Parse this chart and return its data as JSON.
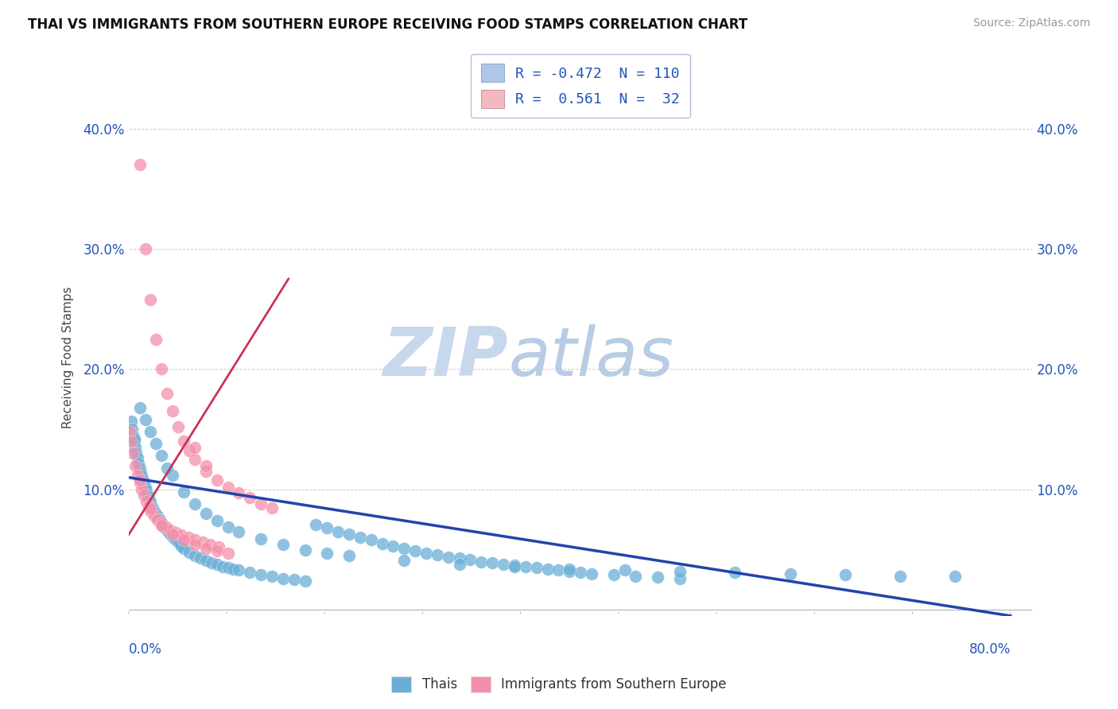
{
  "title": "THAI VS IMMIGRANTS FROM SOUTHERN EUROPE RECEIVING FOOD STAMPS CORRELATION CHART",
  "source": "Source: ZipAtlas.com",
  "ylabel": "Receiving Food Stamps",
  "ytick_values": [
    0.0,
    0.1,
    0.2,
    0.3,
    0.4
  ],
  "xlim": [
    0.0,
    0.82
  ],
  "ylim": [
    -0.005,
    0.425
  ],
  "legend_items": [
    {
      "label": "R = -0.472  N = 110",
      "color": "#aec6e8"
    },
    {
      "label": "R =  0.561  N =  32",
      "color": "#f4b8c1"
    }
  ],
  "legend_text_color": "#2255bb",
  "watermark_zip": "ZIP",
  "watermark_atlas": "atlas",
  "watermark_color_zip": "#c8d8ec",
  "watermark_color_atlas": "#b8cce4",
  "blue_color": "#6aaed6",
  "pink_color": "#f48faa",
  "blue_line_color": "#2244aa",
  "pink_line_color": "#cc3355",
  "blue_scatter_x": [
    0.002,
    0.003,
    0.004,
    0.005,
    0.006,
    0.007,
    0.008,
    0.009,
    0.01,
    0.011,
    0.012,
    0.013,
    0.014,
    0.015,
    0.016,
    0.017,
    0.018,
    0.019,
    0.02,
    0.022,
    0.024,
    0.026,
    0.028,
    0.03,
    0.032,
    0.034,
    0.036,
    0.038,
    0.04,
    0.042,
    0.044,
    0.046,
    0.048,
    0.05,
    0.055,
    0.06,
    0.065,
    0.07,
    0.075,
    0.08,
    0.085,
    0.09,
    0.095,
    0.1,
    0.11,
    0.12,
    0.13,
    0.14,
    0.15,
    0.16,
    0.17,
    0.18,
    0.19,
    0.2,
    0.21,
    0.22,
    0.23,
    0.24,
    0.25,
    0.26,
    0.27,
    0.28,
    0.29,
    0.3,
    0.31,
    0.32,
    0.33,
    0.34,
    0.35,
    0.36,
    0.37,
    0.38,
    0.39,
    0.4,
    0.41,
    0.42,
    0.44,
    0.46,
    0.48,
    0.5,
    0.01,
    0.02,
    0.03,
    0.04,
    0.05,
    0.06,
    0.07,
    0.08,
    0.09,
    0.1,
    0.12,
    0.14,
    0.16,
    0.18,
    0.2,
    0.25,
    0.3,
    0.35,
    0.4,
    0.45,
    0.5,
    0.55,
    0.6,
    0.65,
    0.7,
    0.75,
    0.005,
    0.015,
    0.025,
    0.035
  ],
  "blue_scatter_y": [
    0.157,
    0.15,
    0.145,
    0.14,
    0.135,
    0.13,
    0.126,
    0.122,
    0.118,
    0.114,
    0.111,
    0.108,
    0.105,
    0.102,
    0.099,
    0.096,
    0.094,
    0.091,
    0.089,
    0.085,
    0.081,
    0.078,
    0.075,
    0.072,
    0.069,
    0.067,
    0.065,
    0.063,
    0.061,
    0.059,
    0.057,
    0.055,
    0.053,
    0.051,
    0.048,
    0.045,
    0.043,
    0.041,
    0.039,
    0.038,
    0.036,
    0.035,
    0.034,
    0.033,
    0.031,
    0.029,
    0.028,
    0.026,
    0.025,
    0.024,
    0.071,
    0.068,
    0.065,
    0.063,
    0.06,
    0.058,
    0.055,
    0.053,
    0.051,
    0.049,
    0.047,
    0.046,
    0.044,
    0.043,
    0.042,
    0.04,
    0.039,
    0.038,
    0.037,
    0.036,
    0.035,
    0.034,
    0.033,
    0.032,
    0.031,
    0.03,
    0.029,
    0.028,
    0.027,
    0.026,
    0.168,
    0.148,
    0.128,
    0.112,
    0.098,
    0.088,
    0.08,
    0.074,
    0.069,
    0.065,
    0.059,
    0.054,
    0.05,
    0.047,
    0.045,
    0.041,
    0.038,
    0.036,
    0.034,
    0.033,
    0.032,
    0.031,
    0.03,
    0.029,
    0.028,
    0.028,
    0.142,
    0.158,
    0.138,
    0.118
  ],
  "pink_scatter_x": [
    0.001,
    0.002,
    0.004,
    0.006,
    0.008,
    0.01,
    0.012,
    0.014,
    0.016,
    0.018,
    0.02,
    0.023,
    0.026,
    0.03,
    0.034,
    0.038,
    0.043,
    0.048,
    0.054,
    0.06,
    0.067,
    0.074,
    0.082,
    0.01,
    0.02,
    0.03,
    0.04,
    0.05,
    0.06,
    0.07,
    0.08,
    0.09
  ],
  "pink_scatter_y": [
    0.148,
    0.14,
    0.13,
    0.12,
    0.112,
    0.106,
    0.1,
    0.095,
    0.09,
    0.086,
    0.082,
    0.078,
    0.075,
    0.072,
    0.069,
    0.066,
    0.064,
    0.062,
    0.06,
    0.058,
    0.056,
    0.054,
    0.052,
    0.108,
    0.084,
    0.07,
    0.063,
    0.058,
    0.054,
    0.051,
    0.049,
    0.047
  ],
  "pink_scatter_high_x": [
    0.01,
    0.015,
    0.02,
    0.025,
    0.03,
    0.035,
    0.04,
    0.045,
    0.05,
    0.055,
    0.06,
    0.07,
    0.08,
    0.09,
    0.1,
    0.11,
    0.12,
    0.13,
    0.06,
    0.07
  ],
  "pink_scatter_high_y": [
    0.37,
    0.3,
    0.258,
    0.225,
    0.2,
    0.18,
    0.165,
    0.152,
    0.14,
    0.132,
    0.125,
    0.115,
    0.108,
    0.102,
    0.097,
    0.093,
    0.088,
    0.085,
    0.135,
    0.12
  ],
  "blue_line_x": [
    0.0,
    0.8
  ],
  "blue_line_y": [
    0.11,
    -0.005
  ],
  "pink_line_x": [
    -0.005,
    0.145
  ],
  "pink_line_y": [
    0.055,
    0.275
  ]
}
